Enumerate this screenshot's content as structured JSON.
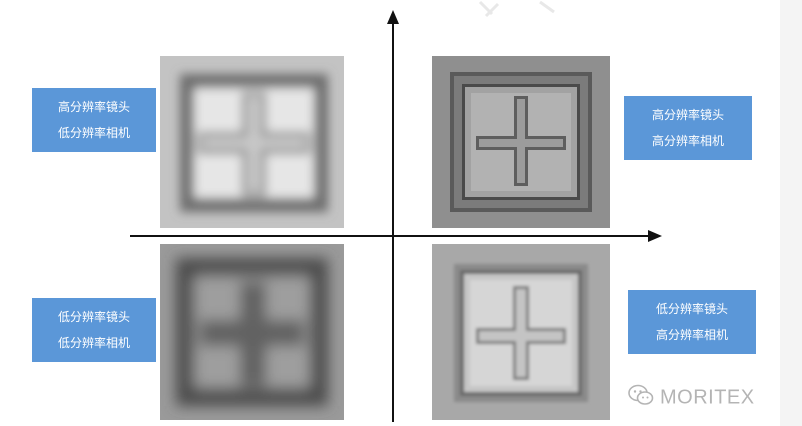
{
  "quadrants": {
    "top_left": {
      "lens": "高分辨率镜头",
      "camera": "低分辨率相机"
    },
    "top_right": {
      "lens": "高分辨率镜头",
      "camera": "高分辨率相机"
    },
    "bottom_left": {
      "lens": "低分辨率镜头",
      "camera": "低分辨率相机"
    },
    "bottom_right": {
      "lens": "低分辨率镜头",
      "camera": "高分辨率相机"
    }
  },
  "watermark": {
    "text": "MORITEX",
    "icon": "wechat-icon"
  },
  "colors": {
    "label_bg": "#5b97d8",
    "label_text": "#ffffff",
    "axis": "#111111"
  }
}
